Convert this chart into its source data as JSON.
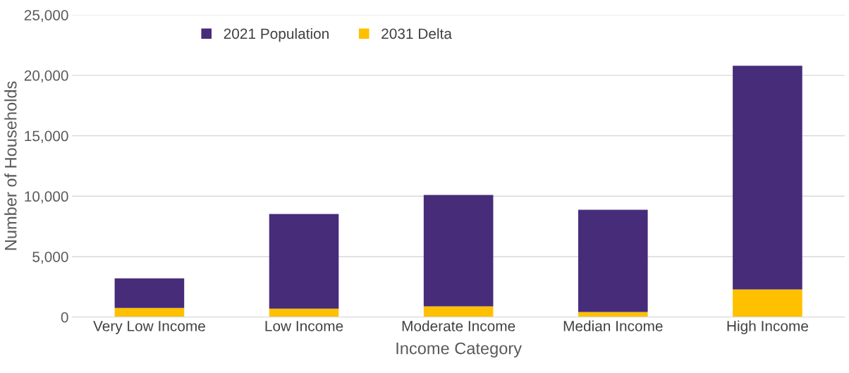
{
  "chart_data": {
    "type": "bar",
    "stacked": true,
    "xlabel": "Income Category",
    "ylabel": "Number of Households",
    "categories": [
      "Very Low Income",
      "Low Income",
      "Moderate Income",
      "Median Income",
      "High Income"
    ],
    "series": [
      {
        "name": "2031 Delta",
        "color": "#ffc000",
        "values": [
          750,
          700,
          880,
          410,
          2280
        ]
      },
      {
        "name": "2021 Population",
        "color": "#472c7a",
        "values": [
          2450,
          7830,
          9220,
          8470,
          18510
        ]
      }
    ],
    "ylim": [
      0,
      25000
    ],
    "yticks": [
      {
        "value": 0,
        "label": "0"
      },
      {
        "value": 5000,
        "label": "5,000"
      },
      {
        "value": 10000,
        "label": "10,000"
      },
      {
        "value": 15000,
        "label": "15,000"
      },
      {
        "value": 20000,
        "label": "20,000"
      },
      {
        "value": 25000,
        "label": "25,000"
      }
    ],
    "grid": "y",
    "legend": "top left"
  }
}
